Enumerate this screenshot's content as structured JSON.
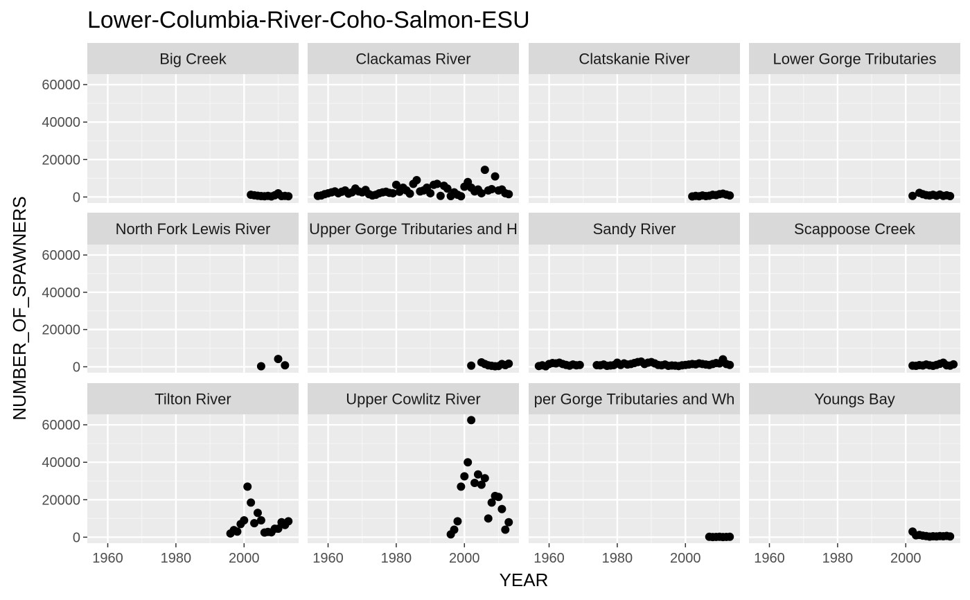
{
  "chart_data": {
    "type": "scatter",
    "title": "Lower-Columbia-River-Coho-Salmon-ESU",
    "xlabel": "YEAR",
    "ylabel": "NUMBER_OF_SPAWNERS",
    "xlim": [
      1954,
      2016
    ],
    "ylim": [
      -3200,
      65600
    ],
    "x_ticks": [
      1960,
      1980,
      2000
    ],
    "y_ticks": [
      0,
      20000,
      40000,
      60000
    ],
    "x_tick_labels": [
      "1960",
      "1980",
      "2000"
    ],
    "y_tick_labels": [
      "0",
      "20000",
      "40000",
      "60000"
    ],
    "grid": true,
    "panels": [
      {
        "label": "Big Creek",
        "points": [
          [
            2002,
            1200
          ],
          [
            2003,
            900
          ],
          [
            2004,
            700
          ],
          [
            2005,
            500
          ],
          [
            2006,
            400
          ],
          [
            2007,
            600
          ],
          [
            2008,
            300
          ],
          [
            2009,
            900
          ],
          [
            2010,
            2000
          ],
          [
            2011,
            500
          ],
          [
            2012,
            600
          ],
          [
            2013,
            400
          ]
        ]
      },
      {
        "label": "Clackamas River",
        "points": [
          [
            1957,
            600
          ],
          [
            1958,
            800
          ],
          [
            1959,
            1500
          ],
          [
            1960,
            2000
          ],
          [
            1961,
            2500
          ],
          [
            1962,
            3000
          ],
          [
            1963,
            2000
          ],
          [
            1964,
            2800
          ],
          [
            1965,
            3500
          ],
          [
            1966,
            1800
          ],
          [
            1967,
            2500
          ],
          [
            1968,
            4500
          ],
          [
            1969,
            3000
          ],
          [
            1970,
            2500
          ],
          [
            1971,
            3800
          ],
          [
            1972,
            1500
          ],
          [
            1973,
            800
          ],
          [
            1974,
            1200
          ],
          [
            1975,
            2000
          ],
          [
            1976,
            2500
          ],
          [
            1977,
            2800
          ],
          [
            1978,
            2200
          ],
          [
            1979,
            2000
          ],
          [
            1980,
            6500
          ],
          [
            1981,
            2800
          ],
          [
            1982,
            5000
          ],
          [
            1983,
            3500
          ],
          [
            1984,
            1800
          ],
          [
            1985,
            7000
          ],
          [
            1986,
            9000
          ],
          [
            1987,
            3000
          ],
          [
            1988,
            3500
          ],
          [
            1989,
            5000
          ],
          [
            1990,
            2000
          ],
          [
            1991,
            6500
          ],
          [
            1992,
            7000
          ],
          [
            1993,
            600
          ],
          [
            1994,
            6000
          ],
          [
            1995,
            4500
          ],
          [
            1996,
            500
          ],
          [
            1997,
            2500
          ],
          [
            1998,
            1200
          ],
          [
            1999,
            400
          ],
          [
            2000,
            5500
          ],
          [
            2001,
            8000
          ],
          [
            2002,
            5000
          ],
          [
            2003,
            3000
          ],
          [
            2004,
            4000
          ],
          [
            2005,
            2000
          ],
          [
            2006,
            14500
          ],
          [
            2007,
            3500
          ],
          [
            2008,
            4200
          ],
          [
            2009,
            11000
          ],
          [
            2010,
            3500
          ],
          [
            2011,
            4000
          ],
          [
            2012,
            2000
          ],
          [
            2013,
            1500
          ]
        ]
      },
      {
        "label": "Clatskanie River",
        "points": [
          [
            2002,
            300
          ],
          [
            2003,
            600
          ],
          [
            2004,
            400
          ],
          [
            2005,
            800
          ],
          [
            2006,
            500
          ],
          [
            2007,
            700
          ],
          [
            2008,
            1200
          ],
          [
            2009,
            1000
          ],
          [
            2010,
            1500
          ],
          [
            2011,
            1800
          ],
          [
            2012,
            1300
          ],
          [
            2013,
            800
          ]
        ]
      },
      {
        "label": "Lower Gorge Tributaries",
        "points": [
          [
            2002,
            600
          ],
          [
            2004,
            2200
          ],
          [
            2005,
            1500
          ],
          [
            2006,
            1000
          ],
          [
            2007,
            800
          ],
          [
            2008,
            1200
          ],
          [
            2009,
            700
          ],
          [
            2010,
            1300
          ],
          [
            2011,
            600
          ],
          [
            2012,
            900
          ],
          [
            2013,
            500
          ]
        ]
      },
      {
        "label": "North Fork Lewis River",
        "points": [
          [
            2005,
            300
          ],
          [
            2010,
            4200
          ],
          [
            2012,
            800
          ]
        ]
      },
      {
        "label": "Upper Gorge Tributaries and H",
        "points": [
          [
            2002,
            600
          ],
          [
            2005,
            2400
          ],
          [
            2006,
            1500
          ],
          [
            2007,
            800
          ],
          [
            2008,
            500
          ],
          [
            2009,
            300
          ],
          [
            2010,
            400
          ],
          [
            2011,
            1500
          ],
          [
            2012,
            900
          ],
          [
            2013,
            1700
          ]
        ]
      },
      {
        "label": "Sandy River",
        "points": [
          [
            1957,
            400
          ],
          [
            1958,
            800
          ],
          [
            1959,
            300
          ],
          [
            1960,
            1500
          ],
          [
            1961,
            2000
          ],
          [
            1962,
            1800
          ],
          [
            1963,
            2200
          ],
          [
            1964,
            1500
          ],
          [
            1965,
            1000
          ],
          [
            1966,
            600
          ],
          [
            1967,
            1200
          ],
          [
            1968,
            800
          ],
          [
            1969,
            1000
          ],
          [
            1974,
            900
          ],
          [
            1975,
            800
          ],
          [
            1976,
            1200
          ],
          [
            1977,
            500
          ],
          [
            1978,
            700
          ],
          [
            1979,
            900
          ],
          [
            1980,
            2200
          ],
          [
            1981,
            1000
          ],
          [
            1982,
            1800
          ],
          [
            1983,
            1200
          ],
          [
            1984,
            1500
          ],
          [
            1985,
            2000
          ],
          [
            1986,
            2500
          ],
          [
            1987,
            2800
          ],
          [
            1988,
            1500
          ],
          [
            1989,
            2200
          ],
          [
            1990,
            2500
          ],
          [
            1991,
            1800
          ],
          [
            1992,
            1000
          ],
          [
            1993,
            800
          ],
          [
            1994,
            1200
          ],
          [
            1995,
            500
          ],
          [
            1996,
            700
          ],
          [
            1997,
            600
          ],
          [
            1998,
            400
          ],
          [
            1999,
            800
          ],
          [
            2000,
            1000
          ],
          [
            2001,
            1200
          ],
          [
            2002,
            1500
          ],
          [
            2003,
            1300
          ],
          [
            2004,
            1800
          ],
          [
            2005,
            1500
          ],
          [
            2006,
            1200
          ],
          [
            2007,
            1000
          ],
          [
            2008,
            1500
          ],
          [
            2009,
            2000
          ],
          [
            2010,
            1800
          ],
          [
            2011,
            4000
          ],
          [
            2012,
            1500
          ],
          [
            2013,
            1000
          ]
        ]
      },
      {
        "label": "Scappoose Creek",
        "points": [
          [
            2002,
            600
          ],
          [
            2003,
            500
          ],
          [
            2004,
            900
          ],
          [
            2005,
            700
          ],
          [
            2006,
            1200
          ],
          [
            2007,
            800
          ],
          [
            2008,
            500
          ],
          [
            2009,
            1000
          ],
          [
            2010,
            1600
          ],
          [
            2011,
            2200
          ],
          [
            2012,
            800
          ],
          [
            2013,
            600
          ],
          [
            2014,
            1300
          ]
        ]
      },
      {
        "label": "Tilton River",
        "points": [
          [
            1996,
            2000
          ],
          [
            1997,
            3800
          ],
          [
            1998,
            3000
          ],
          [
            1999,
            7000
          ],
          [
            2000,
            9000
          ],
          [
            2001,
            27000
          ],
          [
            2002,
            18500
          ],
          [
            2003,
            7500
          ],
          [
            2004,
            13000
          ],
          [
            2005,
            9000
          ],
          [
            2006,
            2500
          ],
          [
            2007,
            2800
          ],
          [
            2008,
            2600
          ],
          [
            2009,
            4500
          ],
          [
            2010,
            4500
          ],
          [
            2011,
            8000
          ],
          [
            2012,
            6500
          ],
          [
            2013,
            8500
          ]
        ]
      },
      {
        "label": "Upper Cowlitz River",
        "points": [
          [
            1996,
            1500
          ],
          [
            1997,
            4000
          ],
          [
            1998,
            8500
          ],
          [
            1999,
            27000
          ],
          [
            2000,
            32500
          ],
          [
            2001,
            40000
          ],
          [
            2002,
            62500
          ],
          [
            2003,
            29000
          ],
          [
            2004,
            33500
          ],
          [
            2005,
            28000
          ],
          [
            2006,
            31500
          ],
          [
            2007,
            10000
          ],
          [
            2008,
            18500
          ],
          [
            2009,
            22000
          ],
          [
            2010,
            21500
          ],
          [
            2011,
            15000
          ],
          [
            2012,
            4000
          ],
          [
            2013,
            8000
          ]
        ]
      },
      {
        "label": "per Gorge Tributaries and Wh",
        "points": [
          [
            2007,
            200
          ],
          [
            2008,
            100
          ],
          [
            2009,
            150
          ],
          [
            2010,
            200
          ],
          [
            2011,
            100
          ],
          [
            2012,
            150
          ],
          [
            2013,
            200
          ]
        ]
      },
      {
        "label": "Youngs Bay",
        "points": [
          [
            2002,
            3000
          ],
          [
            2003,
            1000
          ],
          [
            2004,
            1200
          ],
          [
            2005,
            800
          ],
          [
            2006,
            600
          ],
          [
            2007,
            300
          ],
          [
            2008,
            500
          ],
          [
            2009,
            400
          ],
          [
            2010,
            600
          ],
          [
            2011,
            500
          ],
          [
            2012,
            700
          ],
          [
            2013,
            400
          ]
        ]
      }
    ]
  }
}
